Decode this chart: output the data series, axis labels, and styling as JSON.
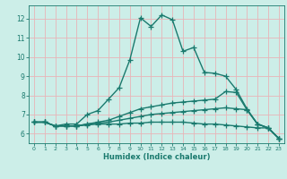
{
  "xlabel": "Humidex (Indice chaleur)",
  "ylabel": "",
  "xlim": [
    -0.5,
    23.5
  ],
  "ylim": [
    5.5,
    12.7
  ],
  "xticks": [
    0,
    1,
    2,
    3,
    4,
    5,
    6,
    7,
    8,
    9,
    10,
    11,
    12,
    13,
    14,
    15,
    16,
    17,
    18,
    19,
    20,
    21,
    22,
    23
  ],
  "yticks": [
    6,
    7,
    8,
    9,
    10,
    11,
    12
  ],
  "bg_color": "#cceee8",
  "line_color": "#1a7a6e",
  "grid_color": "#e8b4b8",
  "line1_x": [
    0,
    1,
    2,
    3,
    4,
    5,
    6,
    7,
    8,
    9,
    10,
    11,
    12,
    13,
    14,
    15,
    16,
    17,
    18,
    19,
    20,
    21,
    22,
    23
  ],
  "line1_y": [
    6.6,
    6.6,
    6.4,
    6.5,
    6.5,
    7.0,
    7.2,
    7.8,
    8.4,
    9.85,
    12.05,
    11.6,
    12.2,
    11.95,
    10.3,
    10.5,
    9.2,
    9.15,
    9.0,
    8.3,
    7.3,
    6.5,
    6.3,
    5.75
  ],
  "line2_x": [
    0,
    1,
    2,
    3,
    4,
    5,
    6,
    7,
    8,
    9,
    10,
    11,
    12,
    13,
    14,
    15,
    16,
    17,
    18,
    19,
    20,
    21,
    22,
    23
  ],
  "line2_y": [
    6.6,
    6.6,
    6.4,
    6.4,
    6.4,
    6.5,
    6.6,
    6.7,
    6.9,
    7.1,
    7.3,
    7.4,
    7.5,
    7.6,
    7.65,
    7.7,
    7.75,
    7.8,
    8.2,
    8.15,
    7.25,
    6.5,
    6.3,
    5.75
  ],
  "line3_x": [
    0,
    1,
    2,
    3,
    4,
    5,
    6,
    7,
    8,
    9,
    10,
    11,
    12,
    13,
    14,
    15,
    16,
    17,
    18,
    19,
    20,
    21,
    22,
    23
  ],
  "line3_y": [
    6.6,
    6.6,
    6.4,
    6.4,
    6.4,
    6.5,
    6.55,
    6.6,
    6.7,
    6.8,
    6.9,
    7.0,
    7.05,
    7.1,
    7.15,
    7.2,
    7.25,
    7.3,
    7.35,
    7.3,
    7.25,
    6.5,
    6.3,
    5.75
  ],
  "line4_x": [
    0,
    1,
    2,
    3,
    4,
    5,
    6,
    7,
    8,
    9,
    10,
    11,
    12,
    13,
    14,
    15,
    16,
    17,
    18,
    19,
    20,
    21,
    22,
    23
  ],
  "line4_y": [
    6.6,
    6.6,
    6.4,
    6.4,
    6.4,
    6.45,
    6.5,
    6.5,
    6.5,
    6.55,
    6.55,
    6.6,
    6.6,
    6.6,
    6.6,
    6.55,
    6.5,
    6.5,
    6.45,
    6.4,
    6.35,
    6.3,
    6.3,
    5.75
  ]
}
